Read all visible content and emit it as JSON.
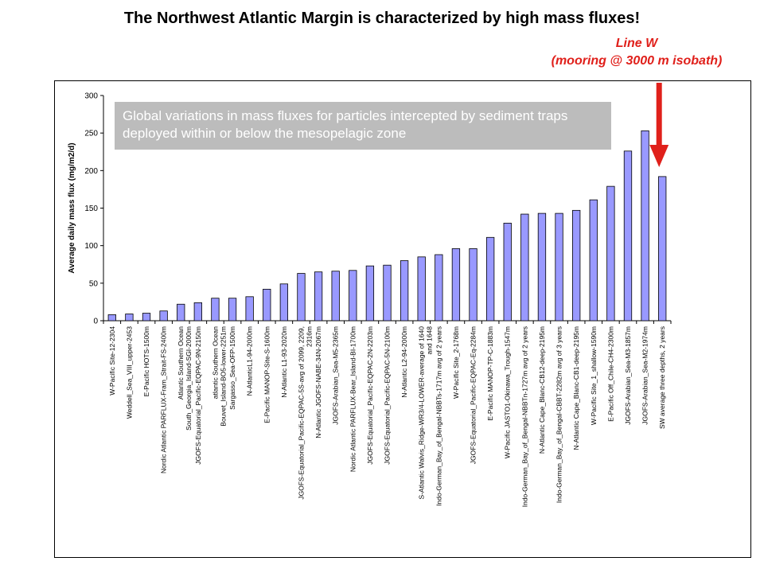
{
  "slide_title": "The Northwest Atlantic Margin is characterized by high mass fluxes!",
  "annotation": {
    "line1": "Line W",
    "line2": "(mooring @ 3000 m isobath)",
    "color": "#e0201b"
  },
  "callout": {
    "text": "Global variations in mass fluxes for particles intercepted by sediment traps deployed within or below the mesopelagic zone"
  },
  "chart_data": {
    "type": "bar",
    "ylabel": "Average daily mass flux (mg/m2/d)",
    "ylim": [
      0,
      300
    ],
    "yticks": [
      0,
      50,
      100,
      150,
      200,
      250,
      300
    ],
    "grid": false,
    "bar_color": "#9999ff",
    "categories": [
      "W-Pacific Site-12-2304",
      "Weddell_Sea_VIII_upper-2453",
      "E-Pacific HOTS-1500m",
      "Nordic Atlantic PARFLUX-Fram_Strait-FS-2400m",
      "Atlantic Southern Ocean South_Georgia_Island-SGI-2000m",
      "JGOFS-Equatorial_Pacific-EQPAC-9N-2150m",
      "atlantic Southern Ocean Bouvet_Island-BO5-lower-2251m",
      "Sargasso_Sea-OFP-1500m",
      "N-AtlanticL1-94-2000m",
      "E-Pacific MANOP-Site-S-1600m",
      "N-Atlantic L1-93-2020m",
      "JGOFS-Equatorial_Pacific-EQPAC-5S-avg of 2099, 2209, 2316m",
      "N-Atlantic JGOFS-NABE-34N-2067m",
      "JGOFS-Arabian_Sea-M5-2365m",
      "Nordic Atlantic PARFLUX-Bear_Island-BI-1700m",
      "JGOFS-Equatorial_Pacific-EQPAC-2N-2203m",
      "JGOFS-Equatorial_Pacific-EQPAC-5N-2100m",
      "N-Atlantic L2-94-2000m",
      "S-Atlantic Walvis_Ridge-WR3/4-LOWER-average of 1640 and 1648",
      "Indo-German_Bay_of_Bengal-NBBTs-1717m avg of 2 years",
      "W-Pacific Site_2-1768m",
      "JGOFS-Equatorial_Pacific-EQPAC-Eq-2284m",
      "E-Pacific MANOP-TP-C-1883m",
      "W-Pacific JASTO1-Okinawa_Trough-1547m",
      "Indo-German_Bay_of_Bengal-NBBTn-1727m avg of 2 years",
      "N-Atlantic Cape_Blanc-CB12-deep-2195m",
      "Indo-German_Bay_of_Bengal-CBBT-2282m avg of 3 years",
      "N-Atlantic Cape_Blanc-CB1-deep-2195m",
      "W-Pacific Site_1_shallow-1590m",
      "E-Pacific Off_Chile-CH4-2300m",
      "JGOFS-Arabian_Sea-M3-1857m",
      "JGOFS-Arabian_Sea-M2-1974m",
      "SW average three depths, 2 years"
    ],
    "values": [
      8,
      9,
      10,
      13,
      22,
      24,
      30,
      30,
      32,
      42,
      49,
      63,
      65,
      66,
      67,
      73,
      74,
      80,
      85,
      88,
      96,
      96,
      111,
      130,
      142,
      143,
      143,
      147,
      161,
      179,
      226,
      253,
      192
    ]
  }
}
